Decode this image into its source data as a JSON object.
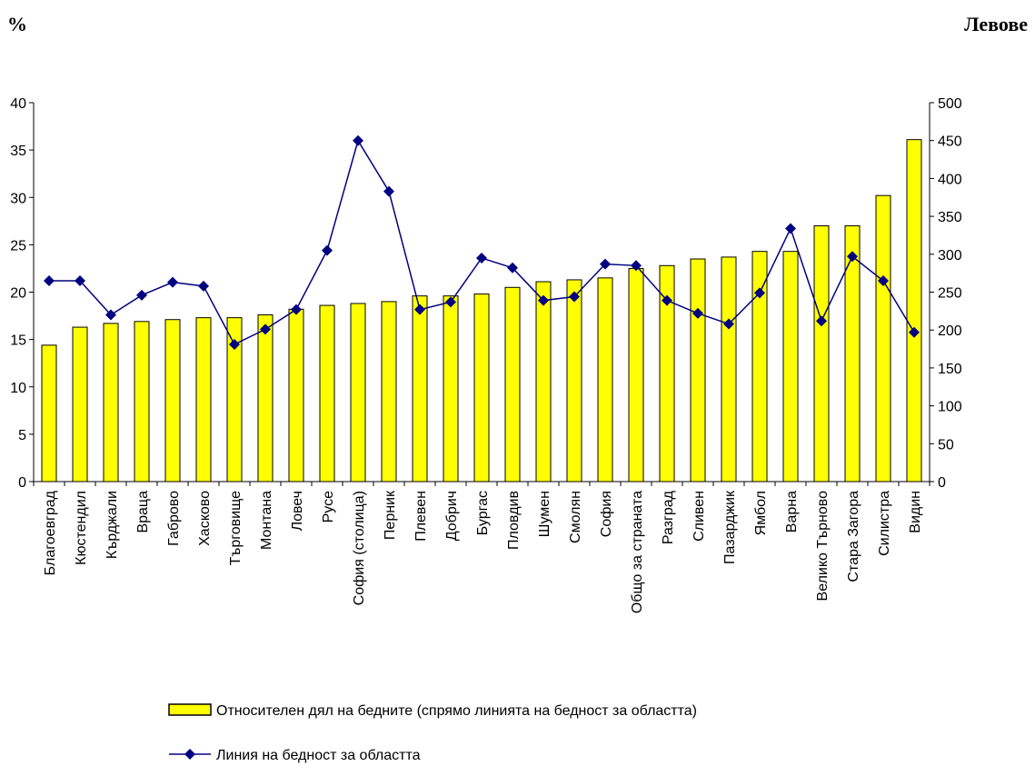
{
  "header": {
    "left_unit": "%",
    "right_unit": "Левове"
  },
  "chart_data": {
    "type": "bar",
    "categories": [
      "Благоевград",
      "Кюстендил",
      "Кърджали",
      "Враца",
      "Габрово",
      "Хасково",
      "Търговище",
      "Монтана",
      "Ловеч",
      "Русе",
      "София (столица)",
      "Перник",
      "Плевен",
      "Добрич",
      "Бургас",
      "Пловдив",
      "Шумен",
      "Смолян",
      "София",
      "Общо за страната",
      "Разград",
      "Сливен",
      "Пазарджик",
      "Ямбол",
      "Варна",
      "Велико Търново",
      "Стара Загора",
      "Силистра",
      "Видин"
    ],
    "series": [
      {
        "name": "Относителен дял на бедните (спрямо линията на бедност за областта)",
        "type": "bar",
        "axis": "left",
        "color": "#ffff00",
        "values": [
          14.4,
          16.3,
          16.7,
          16.9,
          17.1,
          17.3,
          17.3,
          17.6,
          18.2,
          18.6,
          18.8,
          19.0,
          19.6,
          19.6,
          19.8,
          20.5,
          21.1,
          21.3,
          21.5,
          22.5,
          22.8,
          23.5,
          23.7,
          24.3,
          24.3,
          27.0,
          27.0,
          30.2,
          36.1
        ]
      },
      {
        "name": "Линия на бедност за областта",
        "type": "line",
        "axis": "right",
        "color": "#000080",
        "values": [
          265,
          265,
          220,
          246,
          263,
          258,
          181,
          201,
          227,
          305,
          450,
          383,
          227,
          237,
          295,
          282,
          239,
          244,
          287,
          285,
          239,
          222,
          208,
          249,
          334,
          212,
          297,
          265,
          197
        ]
      }
    ],
    "yaxis_left": {
      "min": 0,
      "max": 40,
      "ticks": [
        "0",
        "5",
        "10",
        "15",
        "20",
        "25",
        "30",
        "35",
        "40"
      ]
    },
    "yaxis_right": {
      "min": 0,
      "max": 500,
      "ticks": [
        "0",
        "50",
        "100",
        "150",
        "200",
        "250",
        "300",
        "350",
        "400",
        "450",
        "500"
      ]
    },
    "grid": false,
    "legend_position": "bottom"
  }
}
